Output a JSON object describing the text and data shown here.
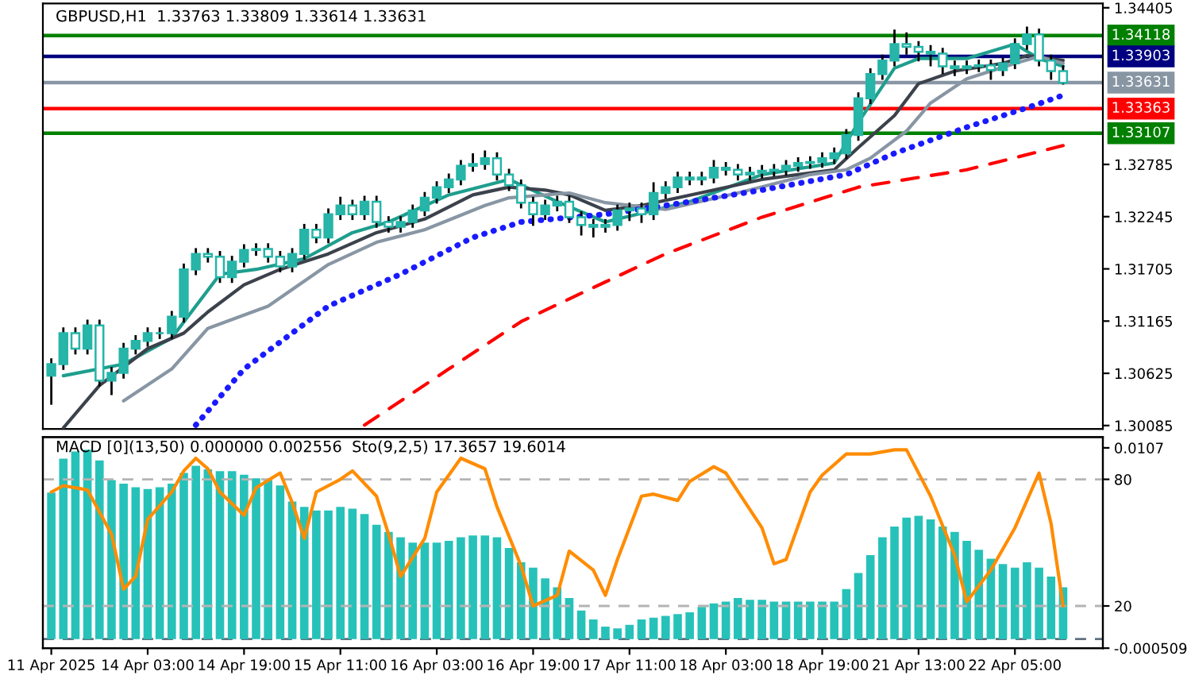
{
  "chart_data": [
    {
      "type": "candlestick",
      "title": "GBPUSD,H1  1.33763 1.33809 1.33614 1.33631",
      "color": "#26b5a8",
      "tick_labels": "y",
      "categories": [
        null,
        null,
        null,
        null,
        null,
        null,
        null,
        null,
        null,
        null,
        null,
        null,
        null,
        null,
        null,
        null,
        null,
        null,
        null,
        null,
        null,
        null,
        null,
        null,
        null,
        null,
        null,
        null,
        null,
        null,
        null,
        null,
        null,
        null,
        null,
        null,
        null,
        null,
        null,
        null,
        null,
        null,
        null,
        null,
        null,
        null,
        null,
        null,
        null,
        null,
        null,
        null,
        null,
        null,
        null,
        null,
        null,
        null,
        null,
        null,
        null,
        null,
        null,
        null,
        null,
        null,
        null,
        null,
        null,
        null,
        null,
        null,
        null,
        null,
        null,
        null,
        null,
        null,
        null,
        null,
        null,
        null,
        null,
        null,
        null
      ],
      "ohlc": [
        [
          1.306,
          1.3078,
          1.303,
          1.3072
        ],
        [
          1.3072,
          1.311,
          1.3066,
          1.3104
        ],
        [
          1.3104,
          1.311,
          1.3082,
          1.3088
        ],
        [
          1.3088,
          1.3118,
          1.3082,
          1.3112
        ],
        [
          1.3112,
          1.3118,
          1.3049,
          1.3055
        ],
        [
          1.3055,
          1.3069,
          1.304,
          1.3063
        ],
        [
          1.3063,
          1.3094,
          1.3057,
          1.3088
        ],
        [
          1.3088,
          1.3102,
          1.3082,
          1.3096
        ],
        [
          1.3096,
          1.311,
          1.309,
          1.3104
        ],
        [
          1.3104,
          1.311,
          1.3098,
          1.3104
        ],
        [
          1.3104,
          1.3127,
          1.3098,
          1.3121
        ],
        [
          1.3121,
          1.3176,
          1.3115,
          1.317
        ],
        [
          1.317,
          1.3192,
          1.3164,
          1.3186
        ],
        [
          1.3186,
          1.3192,
          1.3177,
          1.3183
        ],
        [
          1.3183,
          1.3189,
          1.3156,
          1.3162
        ],
        [
          1.3162,
          1.3184,
          1.3156,
          1.3178
        ],
        [
          1.3178,
          1.3196,
          1.3172,
          1.319
        ],
        [
          1.319,
          1.3197,
          1.3184,
          1.3191
        ],
        [
          1.3191,
          1.3197,
          1.3177,
          1.3183
        ],
        [
          1.3183,
          1.3189,
          1.3167,
          1.3173
        ],
        [
          1.3173,
          1.3192,
          1.3167,
          1.3186
        ],
        [
          1.3186,
          1.3217,
          1.318,
          1.3211
        ],
        [
          1.3211,
          1.3217,
          1.3197,
          1.3203
        ],
        [
          1.3203,
          1.3233,
          1.3197,
          1.3227
        ],
        [
          1.3227,
          1.3245,
          1.3221,
          1.3236
        ],
        [
          1.3236,
          1.3242,
          1.3221,
          1.3227
        ],
        [
          1.3227,
          1.3246,
          1.3221,
          1.324
        ],
        [
          1.324,
          1.3246,
          1.3213,
          1.3219
        ],
        [
          1.3219,
          1.3225,
          1.3208,
          1.3214
        ],
        [
          1.3214,
          1.3225,
          1.3208,
          1.3219
        ],
        [
          1.3219,
          1.3237,
          1.3213,
          1.3231
        ],
        [
          1.3231,
          1.325,
          1.3225,
          1.3244
        ],
        [
          1.3244,
          1.3261,
          1.3238,
          1.3255
        ],
        [
          1.3255,
          1.3269,
          1.3249,
          1.3263
        ],
        [
          1.3263,
          1.3283,
          1.3257,
          1.3277
        ],
        [
          1.3277,
          1.329,
          1.3271,
          1.3279
        ],
        [
          1.3279,
          1.3293,
          1.3273,
          1.3285
        ],
        [
          1.3285,
          1.3291,
          1.3262,
          1.3268
        ],
        [
          1.3268,
          1.3274,
          1.3251,
          1.3257
        ],
        [
          1.3257,
          1.3263,
          1.3233,
          1.3239
        ],
        [
          1.3239,
          1.3245,
          1.3215,
          1.3227
        ],
        [
          1.3227,
          1.3242,
          1.3221,
          1.3236
        ],
        [
          1.3236,
          1.3246,
          1.323,
          1.324
        ],
        [
          1.324,
          1.3246,
          1.3218,
          1.3224
        ],
        [
          1.3224,
          1.323,
          1.3205,
          1.3216
        ],
        [
          1.3216,
          1.3222,
          1.3203,
          1.3214
        ],
        [
          1.3214,
          1.3222,
          1.3208,
          1.3216
        ],
        [
          1.3216,
          1.3237,
          1.321,
          1.3231
        ],
        [
          1.3231,
          1.3239,
          1.322,
          1.3233
        ],
        [
          1.3233,
          1.3239,
          1.3218,
          1.3227
        ],
        [
          1.3227,
          1.326,
          1.3221,
          1.3249
        ],
        [
          1.3249,
          1.3261,
          1.3243,
          1.3255
        ],
        [
          1.3255,
          1.3271,
          1.3249,
          1.3265
        ],
        [
          1.3265,
          1.3271,
          1.3257,
          1.3263
        ],
        [
          1.3263,
          1.3271,
          1.3257,
          1.3265
        ],
        [
          1.3265,
          1.3283,
          1.3259,
          1.3275
        ],
        [
          1.3275,
          1.3281,
          1.3267,
          1.3273
        ],
        [
          1.3273,
          1.3279,
          1.3262,
          1.3268
        ],
        [
          1.3268,
          1.3276,
          1.3262,
          1.327
        ],
        [
          1.327,
          1.3278,
          1.3264,
          1.3272
        ],
        [
          1.3272,
          1.3279,
          1.3266,
          1.3273
        ],
        [
          1.3273,
          1.3283,
          1.3267,
          1.3277
        ],
        [
          1.3277,
          1.3286,
          1.3271,
          1.328
        ],
        [
          1.328,
          1.3287,
          1.3274,
          1.3281
        ],
        [
          1.3281,
          1.3291,
          1.3275,
          1.3285
        ],
        [
          1.3285,
          1.3296,
          1.3279,
          1.329
        ],
        [
          1.329,
          1.3315,
          1.3284,
          1.3309
        ],
        [
          1.3309,
          1.3353,
          1.3303,
          1.3347
        ],
        [
          1.3347,
          1.3378,
          1.3341,
          1.3372
        ],
        [
          1.3372,
          1.3392,
          1.3366,
          1.3386
        ],
        [
          1.3386,
          1.3418,
          1.338,
          1.3403
        ],
        [
          1.3403,
          1.3415,
          1.3392,
          1.34
        ],
        [
          1.34,
          1.3406,
          1.3385,
          1.3395
        ],
        [
          1.3395,
          1.3402,
          1.338,
          1.3393
        ],
        [
          1.3393,
          1.3399,
          1.3372,
          1.338
        ],
        [
          1.338,
          1.3386,
          1.337,
          1.3378
        ],
        [
          1.3378,
          1.3386,
          1.3372,
          1.338
        ],
        [
          1.338,
          1.3387,
          1.3374,
          1.3381
        ],
        [
          1.3381,
          1.3387,
          1.3366,
          1.3376
        ],
        [
          1.3376,
          1.3389,
          1.337,
          1.3383
        ],
        [
          1.3383,
          1.3409,
          1.3377,
          1.3403
        ],
        [
          1.3403,
          1.3421,
          1.3397,
          1.3413
        ],
        [
          1.3413,
          1.3419,
          1.338,
          1.3386
        ],
        [
          1.3386,
          1.3392,
          1.3366,
          1.3375
        ],
        [
          1.3375,
          1.3381,
          1.3361,
          1.3363
        ]
      ],
      "series": [
        {
          "type": "line",
          "color": "#1e9e8e",
          "line_style": "solid",
          "values": [
            null,
            1.306,
            null,
            null,
            null,
            null,
            1.3072,
            null,
            null,
            null,
            1.3099,
            null,
            null,
            null,
            1.3165,
            null,
            null,
            1.317,
            null,
            null,
            null,
            1.3181,
            null,
            null,
            null,
            1.3208,
            null,
            null,
            1.3219,
            null,
            null,
            null,
            null,
            1.3247,
            null,
            null,
            null,
            null,
            1.3263,
            null,
            null,
            null,
            1.324,
            null,
            null,
            null,
            1.3219,
            null,
            null,
            null,
            null,
            null,
            null,
            1.324,
            null,
            null,
            null,
            null,
            null,
            1.3268,
            null,
            null,
            null,
            null,
            null,
            1.328,
            null,
            1.3322,
            null,
            null,
            1.3378,
            null,
            1.3388,
            null,
            null,
            null,
            1.3388,
            null,
            null,
            null,
            1.3403,
            null,
            1.3388,
            null,
            1.338
          ]
        },
        {
          "type": "line",
          "color": "#3c424c",
          "line_style": "solid",
          "values": [
            null,
            1.3006,
            null,
            null,
            1.305,
            null,
            null,
            null,
            1.3088,
            null,
            null,
            1.3104,
            null,
            1.3126,
            null,
            null,
            1.3154,
            null,
            null,
            1.317,
            null,
            null,
            null,
            1.3186,
            null,
            null,
            null,
            1.3208,
            null,
            null,
            null,
            1.3222,
            null,
            null,
            null,
            1.3247,
            null,
            null,
            1.3255,
            null,
            null,
            1.3252,
            null,
            1.3247,
            null,
            null,
            1.3231,
            null,
            null,
            1.3236,
            null,
            null,
            null,
            null,
            null,
            1.3252,
            null,
            null,
            null,
            1.3263,
            null,
            null,
            null,
            null,
            null,
            1.3273,
            null,
            1.3296,
            null,
            null,
            1.3329,
            null,
            1.3362,
            null,
            null,
            1.3375,
            null,
            null,
            null,
            1.3383,
            null,
            1.3391,
            null,
            null,
            1.3386
          ]
        },
        {
          "type": "line",
          "color": "#8896a4",
          "line_style": "solid",
          "values": [
            null,
            null,
            null,
            null,
            null,
            null,
            1.3034,
            null,
            null,
            null,
            1.3067,
            null,
            null,
            1.3109,
            null,
            null,
            null,
            null,
            1.3132,
            null,
            null,
            null,
            null,
            1.3175,
            null,
            null,
            null,
            1.3198,
            null,
            null,
            null,
            1.3211,
            null,
            null,
            null,
            null,
            1.3236,
            null,
            1.3244,
            null,
            null,
            null,
            null,
            1.3249,
            null,
            null,
            1.3239,
            null,
            null,
            null,
            null,
            1.3232,
            null,
            null,
            null,
            null,
            null,
            1.3249,
            null,
            null,
            null,
            null,
            null,
            1.3268,
            null,
            null,
            1.3273,
            null,
            1.3285,
            null,
            null,
            1.3313,
            null,
            1.3342,
            null,
            null,
            1.3367,
            null,
            null,
            null,
            1.3383,
            null,
            1.339,
            null,
            1.3383
          ]
        },
        {
          "type": "line",
          "color": "#1a1aff",
          "line_style": "dotted",
          "values": [
            null,
            null,
            null,
            null,
            null,
            null,
            null,
            null,
            null,
            null,
            null,
            null,
            1.3009,
            null,
            null,
            null,
            1.3067,
            null,
            null,
            null,
            null,
            null,
            null,
            1.3132,
            null,
            null,
            null,
            null,
            null,
            1.3165,
            null,
            null,
            null,
            null,
            null,
            1.3203,
            null,
            null,
            null,
            1.3219,
            null,
            null,
            null,
            null,
            null,
            null,
            1.3227,
            null,
            null,
            null,
            null,
            1.3236,
            null,
            null,
            null,
            null,
            null,
            null,
            null,
            1.3252,
            null,
            null,
            null,
            null,
            null,
            null,
            1.3268,
            null,
            null,
            null,
            1.329,
            null,
            null,
            null,
            null,
            null,
            1.3317,
            null,
            null,
            null,
            null,
            1.3337,
            null,
            null,
            1.335
          ]
        },
        {
          "type": "line",
          "color": "#ff0000",
          "line_style": "dashed",
          "values": [
            null,
            null,
            null,
            null,
            null,
            null,
            null,
            null,
            null,
            null,
            null,
            null,
            null,
            null,
            null,
            null,
            null,
            null,
            null,
            null,
            null,
            null,
            null,
            null,
            null,
            null,
            1.3009,
            null,
            null,
            null,
            null,
            null,
            null,
            1.3067,
            null,
            null,
            null,
            null,
            null,
            1.3116,
            null,
            null,
            null,
            null,
            null,
            null,
            1.3157,
            null,
            null,
            null,
            null,
            1.3186,
            null,
            null,
            null,
            null,
            null,
            null,
            null,
            1.3224,
            null,
            null,
            null,
            null,
            null,
            null,
            null,
            1.3255,
            null,
            null,
            null,
            null,
            null,
            null,
            null,
            null,
            1.3273,
            null,
            null,
            null,
            null,
            null,
            null,
            null,
            1.3298
          ]
        }
      ],
      "ylim": [
        1.3005,
        1.3445
      ],
      "yticks": [
        1.34405,
        1.32785,
        1.32245,
        1.31705,
        1.31165,
        1.30625,
        1.30085
      ],
      "ref_lines": [
        {
          "axis": "y",
          "value": 1.34118,
          "label": "1.34118",
          "color": "#008000"
        },
        {
          "axis": "y",
          "value": 1.33903,
          "label": "1.33903",
          "color": "#000080"
        },
        {
          "axis": "y",
          "value": 1.33631,
          "label": "1.33631",
          "color": "#8896a4"
        },
        {
          "axis": "y",
          "value": 1.33363,
          "label": "1.33363",
          "color": "#ff0000"
        },
        {
          "axis": "y",
          "value": 1.33107,
          "label": "1.33107",
          "color": "#008000"
        }
      ]
    },
    {
      "type": "bar",
      "title": "MACD [0](13,50) 0.000000 0.002556  Sto(9,2,5) 17.3657 19.6014",
      "categories": [
        "11 Apr 2025",
        null,
        null,
        null,
        null,
        null,
        null,
        null,
        "14 Apr 03:00",
        null,
        null,
        null,
        null,
        null,
        null,
        null,
        "14 Apr 19:00",
        null,
        null,
        null,
        null,
        null,
        null,
        null,
        "15 Apr 11:00",
        null,
        null,
        null,
        null,
        null,
        null,
        null,
        "16 Apr 03:00",
        null,
        null,
        null,
        null,
        null,
        null,
        null,
        "16 Apr 19:00",
        null,
        null,
        null,
        null,
        null,
        null,
        null,
        "17 Apr 11:00",
        null,
        null,
        null,
        null,
        null,
        null,
        null,
        "18 Apr 03:00",
        null,
        null,
        null,
        null,
        null,
        null,
        null,
        "18 Apr 19:00",
        null,
        null,
        null,
        null,
        null,
        null,
        null,
        "21 Apr 13:00",
        null,
        null,
        null,
        null,
        null,
        null,
        null,
        "22 Apr 05:00",
        null,
        null,
        null,
        null
      ],
      "series": [
        {
          "type": "bar",
          "axis": "y2",
          "color": "#26c2b9",
          "values": [
            0.0082,
            0.0101,
            0.0105,
            0.0106,
            0.01,
            0.0089,
            0.0087,
            0.0085,
            0.0084,
            0.0085,
            0.0087,
            0.0093,
            0.0097,
            0.0095,
            0.0094,
            0.0094,
            0.0092,
            0.009,
            0.0089,
            0.0086,
            0.0077,
            0.0074,
            0.0072,
            0.0072,
            0.0074,
            0.0073,
            0.007,
            0.0064,
            0.006,
            0.0057,
            0.0054,
            0.0054,
            0.0054,
            0.0055,
            0.0057,
            0.0058,
            0.0058,
            0.0057,
            0.0051,
            0.0043,
            0.004,
            0.0034,
            0.0029,
            0.0023,
            0.0016,
            0.0011,
            0.0007,
            0.0006,
            0.0008,
            0.0011,
            0.0012,
            0.0013,
            0.0014,
            0.0015,
            0.0018,
            0.002,
            0.0021,
            0.0023,
            0.0022,
            0.0022,
            0.0021,
            0.0021,
            0.0021,
            0.0021,
            0.0021,
            0.0021,
            0.0028,
            0.0037,
            0.0047,
            0.0057,
            0.0063,
            0.0068,
            0.0069,
            0.0067,
            0.0063,
            0.006,
            0.0055,
            0.005,
            0.0045,
            0.0042,
            0.004,
            0.0043,
            0.004,
            0.0035,
            0.0029
          ]
        },
        {
          "type": "line",
          "color": "#ff8c00",
          "line_style": "solid",
          "values": [
            74,
            77,
            null,
            75,
            null,
            54,
            28,
            34,
            61,
            null,
            74,
            84,
            90,
            85,
            74,
            null,
            63,
            76,
            null,
            83,
            69,
            52,
            74,
            null,
            80,
            84,
            null,
            72,
            54,
            34,
            null,
            52,
            74,
            null,
            90,
            null,
            85,
            67,
            null,
            39,
            20,
            null,
            25,
            46,
            null,
            37,
            25,
            42,
            null,
            72,
            73,
            null,
            70,
            79,
            null,
            86,
            83,
            null,
            null,
            57,
            40,
            42,
            null,
            74,
            82,
            null,
            92,
            null,
            92,
            null,
            94,
            94,
            null,
            72,
            null,
            44,
            22,
            null,
            37,
            null,
            57,
            null,
            83,
            59,
            20
          ]
        }
      ],
      "ylim": [
        0,
        100
      ],
      "yticks": [
        80,
        20
      ],
      "y2lim": [
        -0.000509,
        0.0113
      ],
      "y2ticks": [
        0.0107,
        -0.000509
      ],
      "ref_lines": [
        {
          "axis": "y",
          "value": 80,
          "color": "#b4b4b4",
          "line_style": "dashed"
        },
        {
          "axis": "y",
          "value": 20,
          "color": "#b4b4b4",
          "line_style": "dashed"
        },
        {
          "axis": "y2",
          "value": 0,
          "color": "#607080",
          "line_style": "dashed"
        }
      ]
    }
  ]
}
